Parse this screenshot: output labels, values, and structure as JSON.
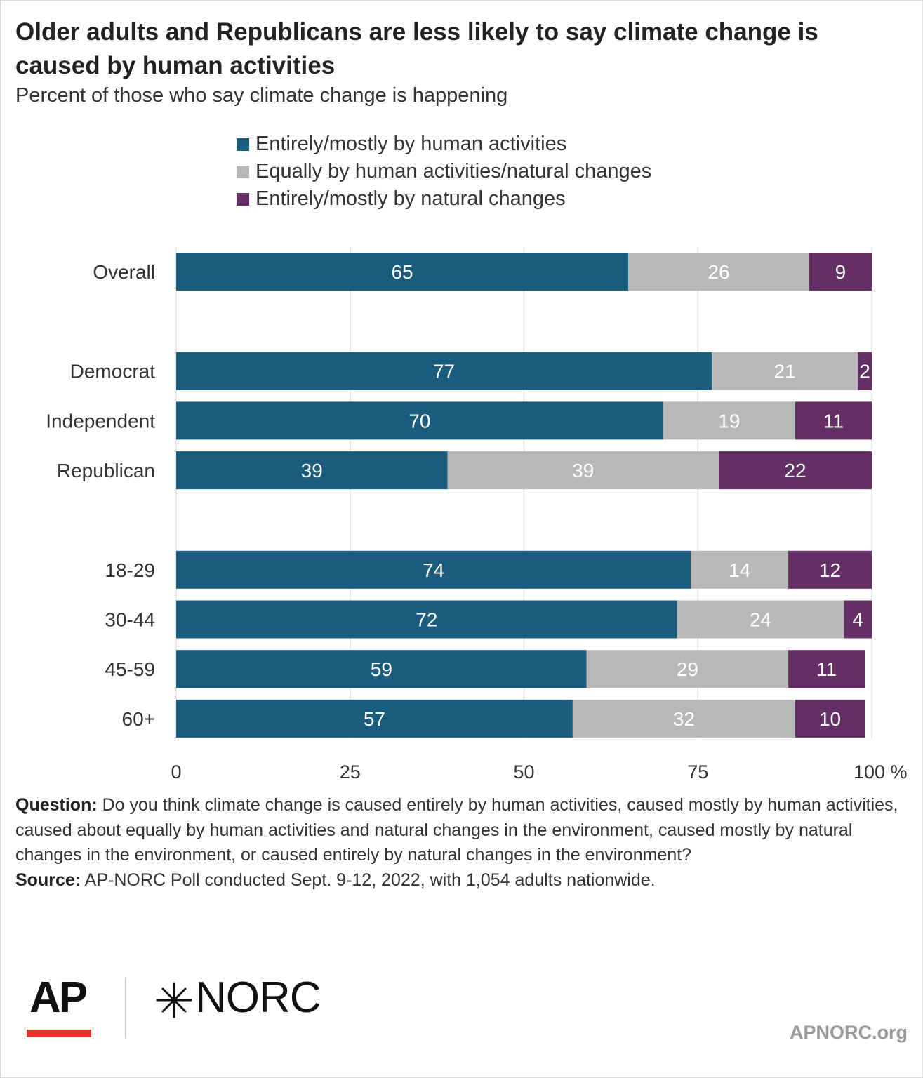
{
  "header": {
    "title": "Older adults and Republicans are less likely to say climate change is caused by human activities",
    "subtitle": "Percent of those who say climate change is happening"
  },
  "chart_data": {
    "type": "bar",
    "orientation": "horizontal",
    "stacked": true,
    "categories": [
      "Overall",
      "Democrat",
      "Independent",
      "Republican",
      "18-29",
      "30-44",
      "45-59",
      "60+"
    ],
    "groups": [
      [
        "Overall"
      ],
      [
        "Democrat",
        "Independent",
        "Republican"
      ],
      [
        "18-29",
        "30-44",
        "45-59",
        "60+"
      ]
    ],
    "series": [
      {
        "name": "Entirely/mostly by human activities",
        "color": "#1a5c7d",
        "values": [
          65,
          77,
          70,
          39,
          74,
          72,
          59,
          57
        ]
      },
      {
        "name": "Equally by human activities/natural changes",
        "color": "#b8b8b8",
        "values": [
          26,
          21,
          19,
          39,
          14,
          24,
          29,
          32
        ]
      },
      {
        "name": "Entirely/mostly by natural changes",
        "color": "#632f64",
        "values": [
          9,
          2,
          11,
          22,
          12,
          4,
          11,
          10
        ]
      }
    ],
    "xlim": [
      0,
      100
    ],
    "xticks": [
      0,
      25,
      50,
      75,
      100
    ],
    "xtick_labels": [
      "0",
      "25",
      "50",
      "75",
      "100 %"
    ],
    "grid": true,
    "legend": "top"
  },
  "notes": {
    "question_label": "Question:",
    "question_text": "Do you think climate change is caused entirely by human activities, caused mostly by human activities, caused about equally by human activities and natural changes in the environment, caused mostly by natural changes in the environment, or caused entirely by natural changes in the environment?",
    "source_label": "Source:",
    "source_text": "AP-NORC Poll conducted Sept. 9-12, 2022, with 1,054 adults nationwide."
  },
  "footer": {
    "ap_logo": "AP",
    "norc_logo": "NORC",
    "site": "APNORC.org"
  }
}
